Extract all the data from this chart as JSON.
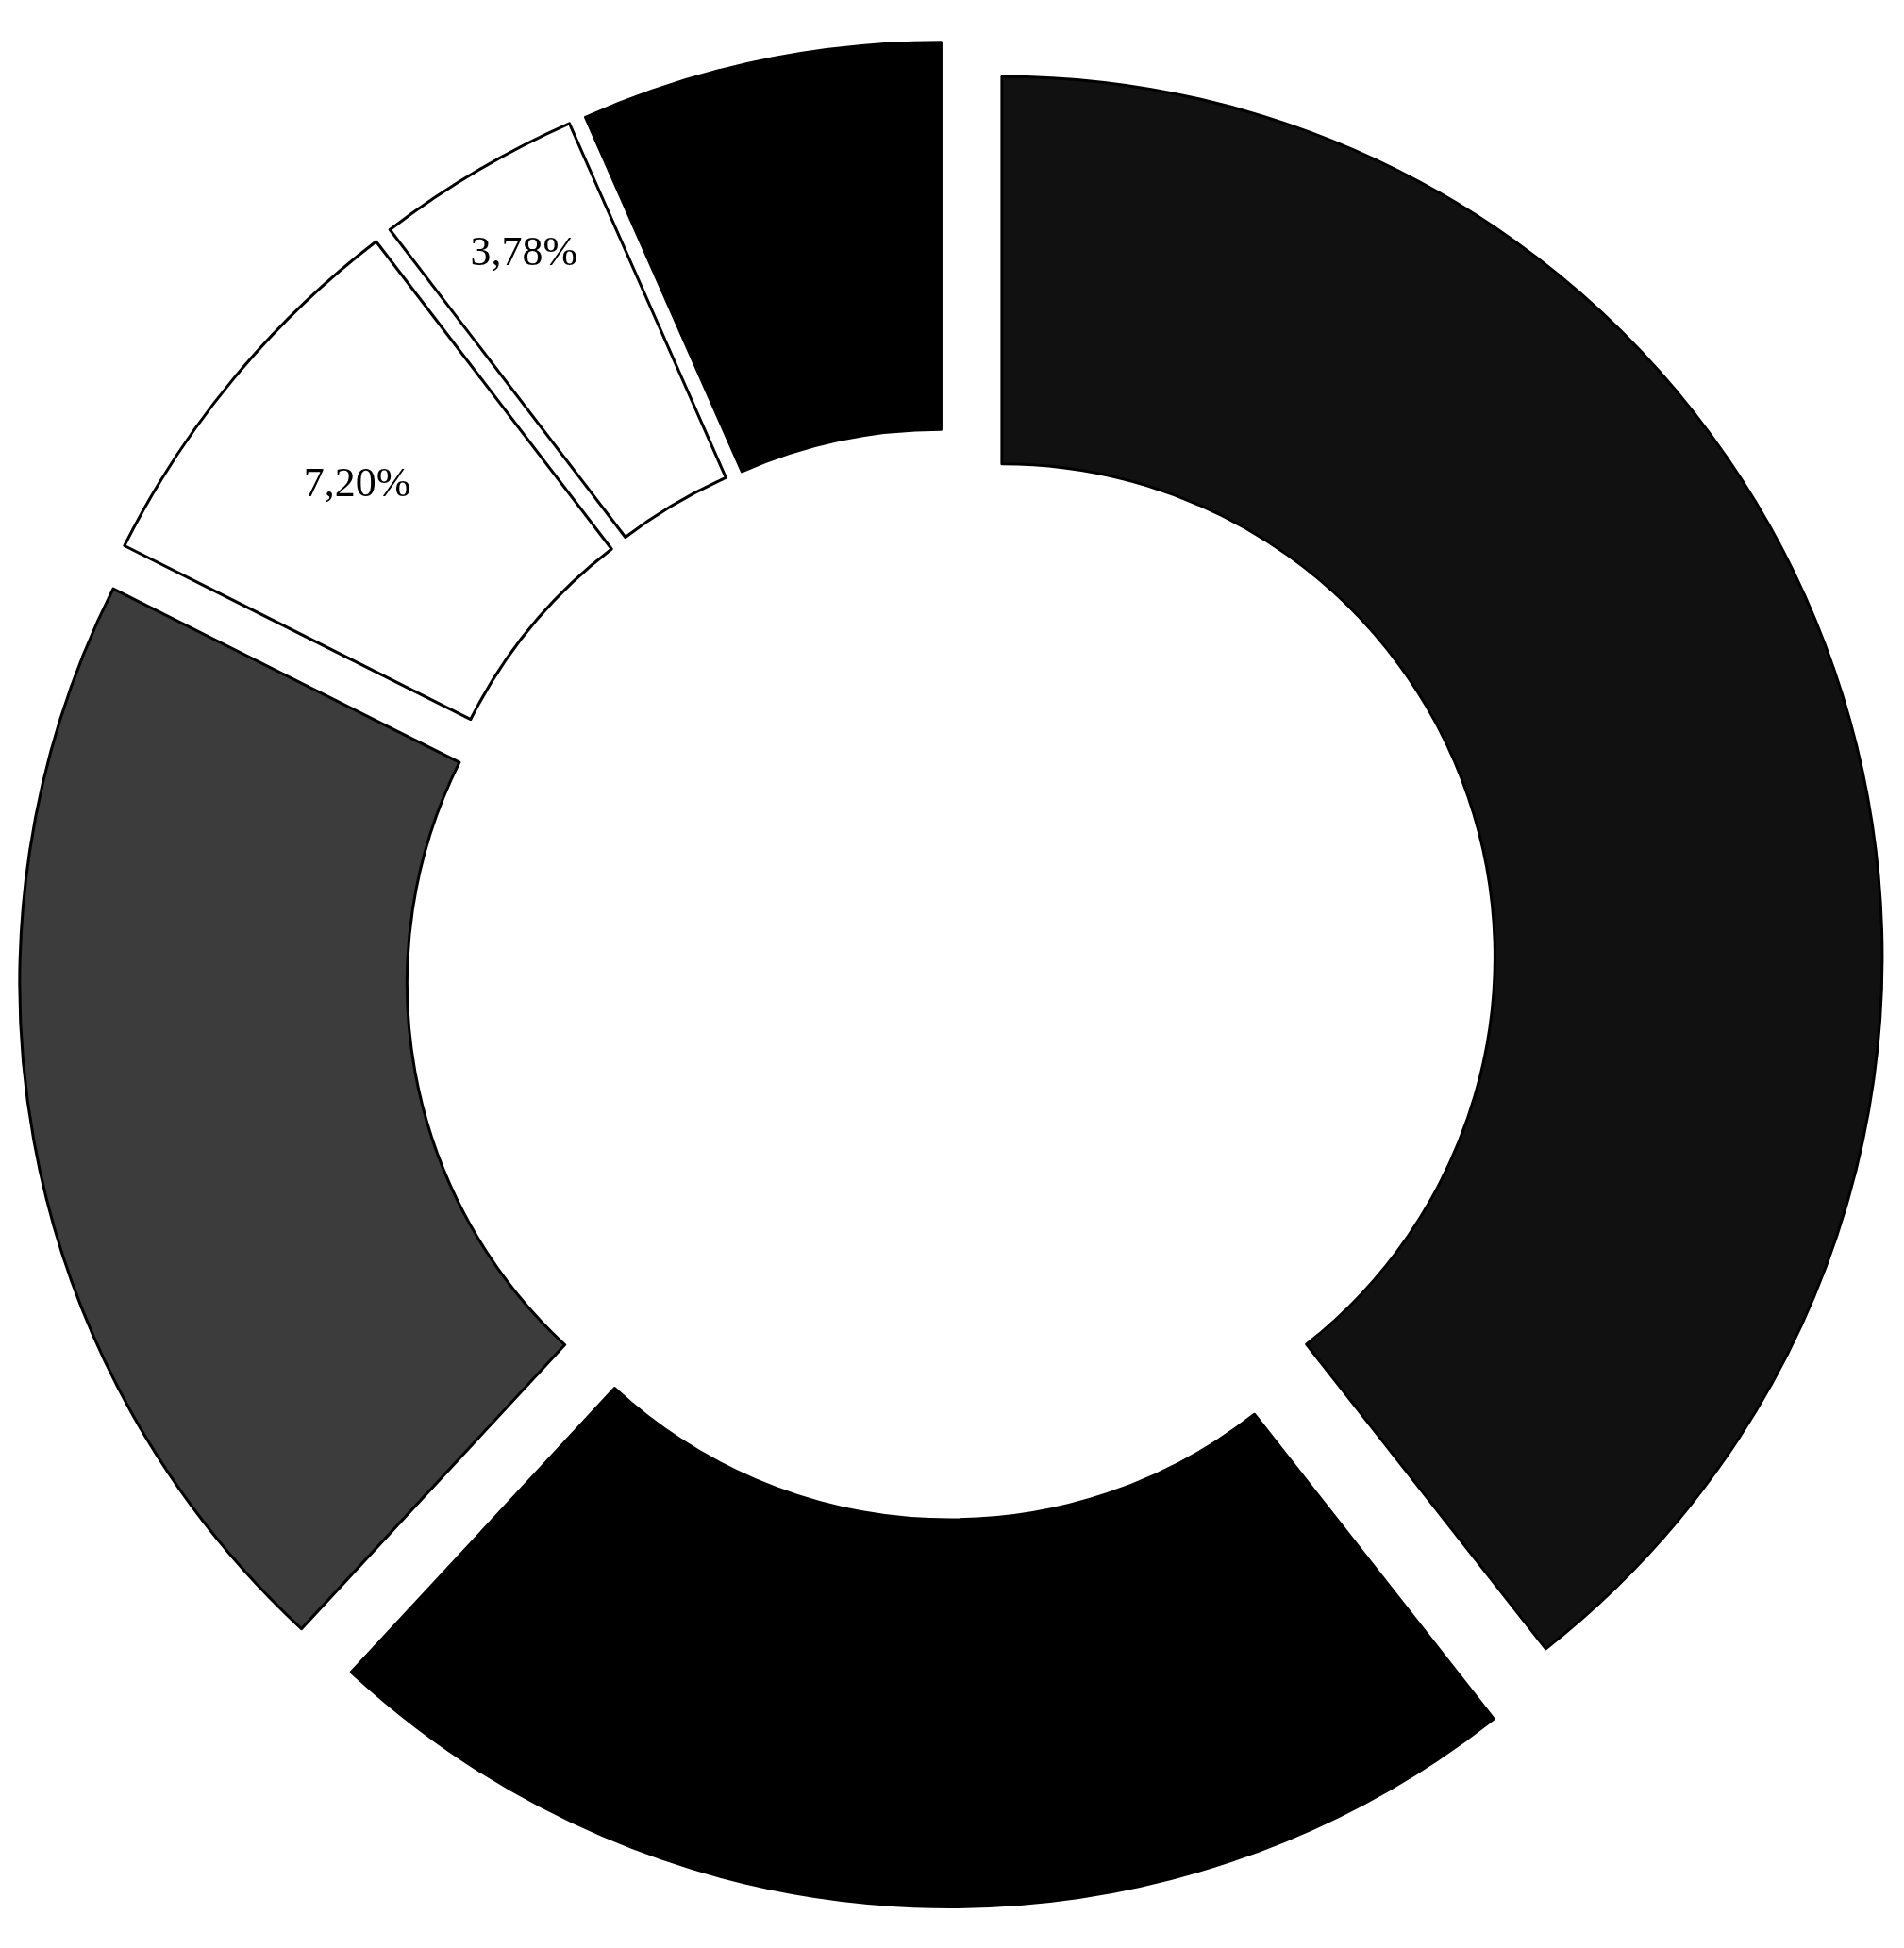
{
  "chart_data": {
    "type": "donut",
    "categories": [
      null,
      null,
      null,
      null,
      null,
      null
    ],
    "values": [
      39.4,
      22.5,
      20.5,
      7.2,
      3.78,
      6.62
    ],
    "colors": [
      "#111111",
      "#000000",
      "#3c3c3c",
      "#ffffff",
      "#ffffff",
      "#000000"
    ],
    "value_labels": [
      null,
      null,
      null,
      "7,20%",
      "3,78%",
      null
    ],
    "legend": false
  }
}
